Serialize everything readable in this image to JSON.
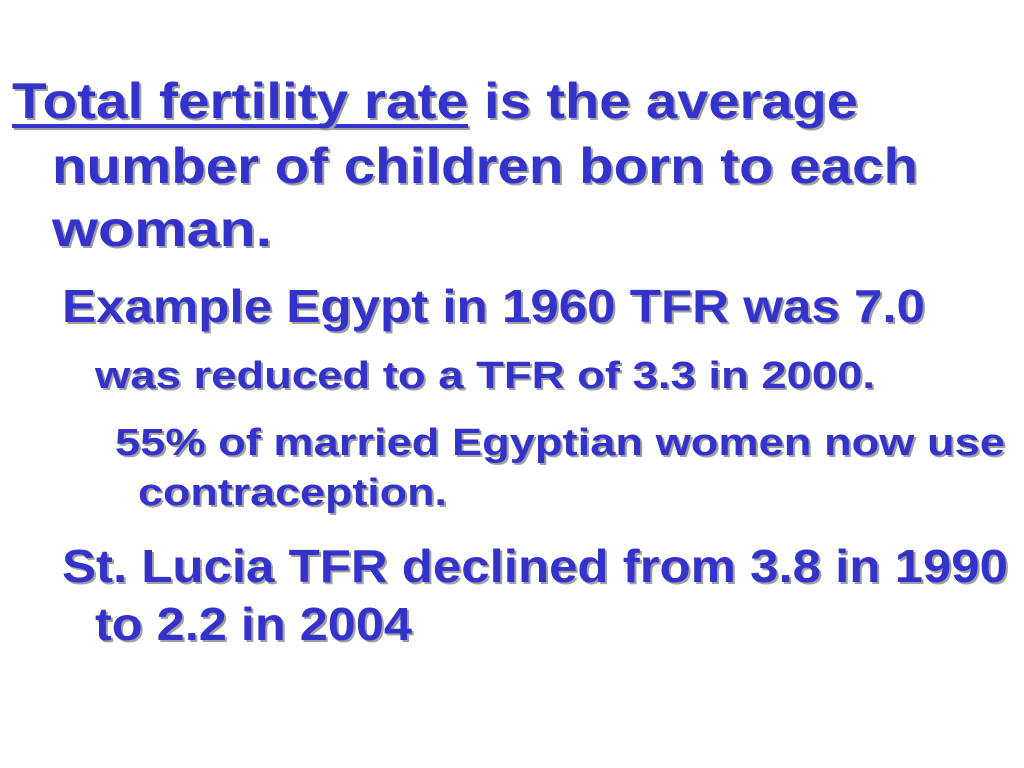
{
  "slide": {
    "definition": {
      "term": "Total fertility rate",
      "lines": [
        "is the average",
        "number of children born to each",
        "woman."
      ]
    },
    "bullets": [
      {
        "lines": [
          "Example Egypt in 1960 TFR was 7.0"
        ]
      },
      {
        "lines": [
          "was reduced to a TFR of 3.3 in 2000."
        ]
      },
      {
        "lines": [
          "55% of married Egyptian women now use",
          "contraception."
        ]
      },
      {
        "lines": [
          "St. Lucia TFR declined from 3.8 in 1990",
          "to 2.2 in 2004"
        ]
      }
    ]
  }
}
